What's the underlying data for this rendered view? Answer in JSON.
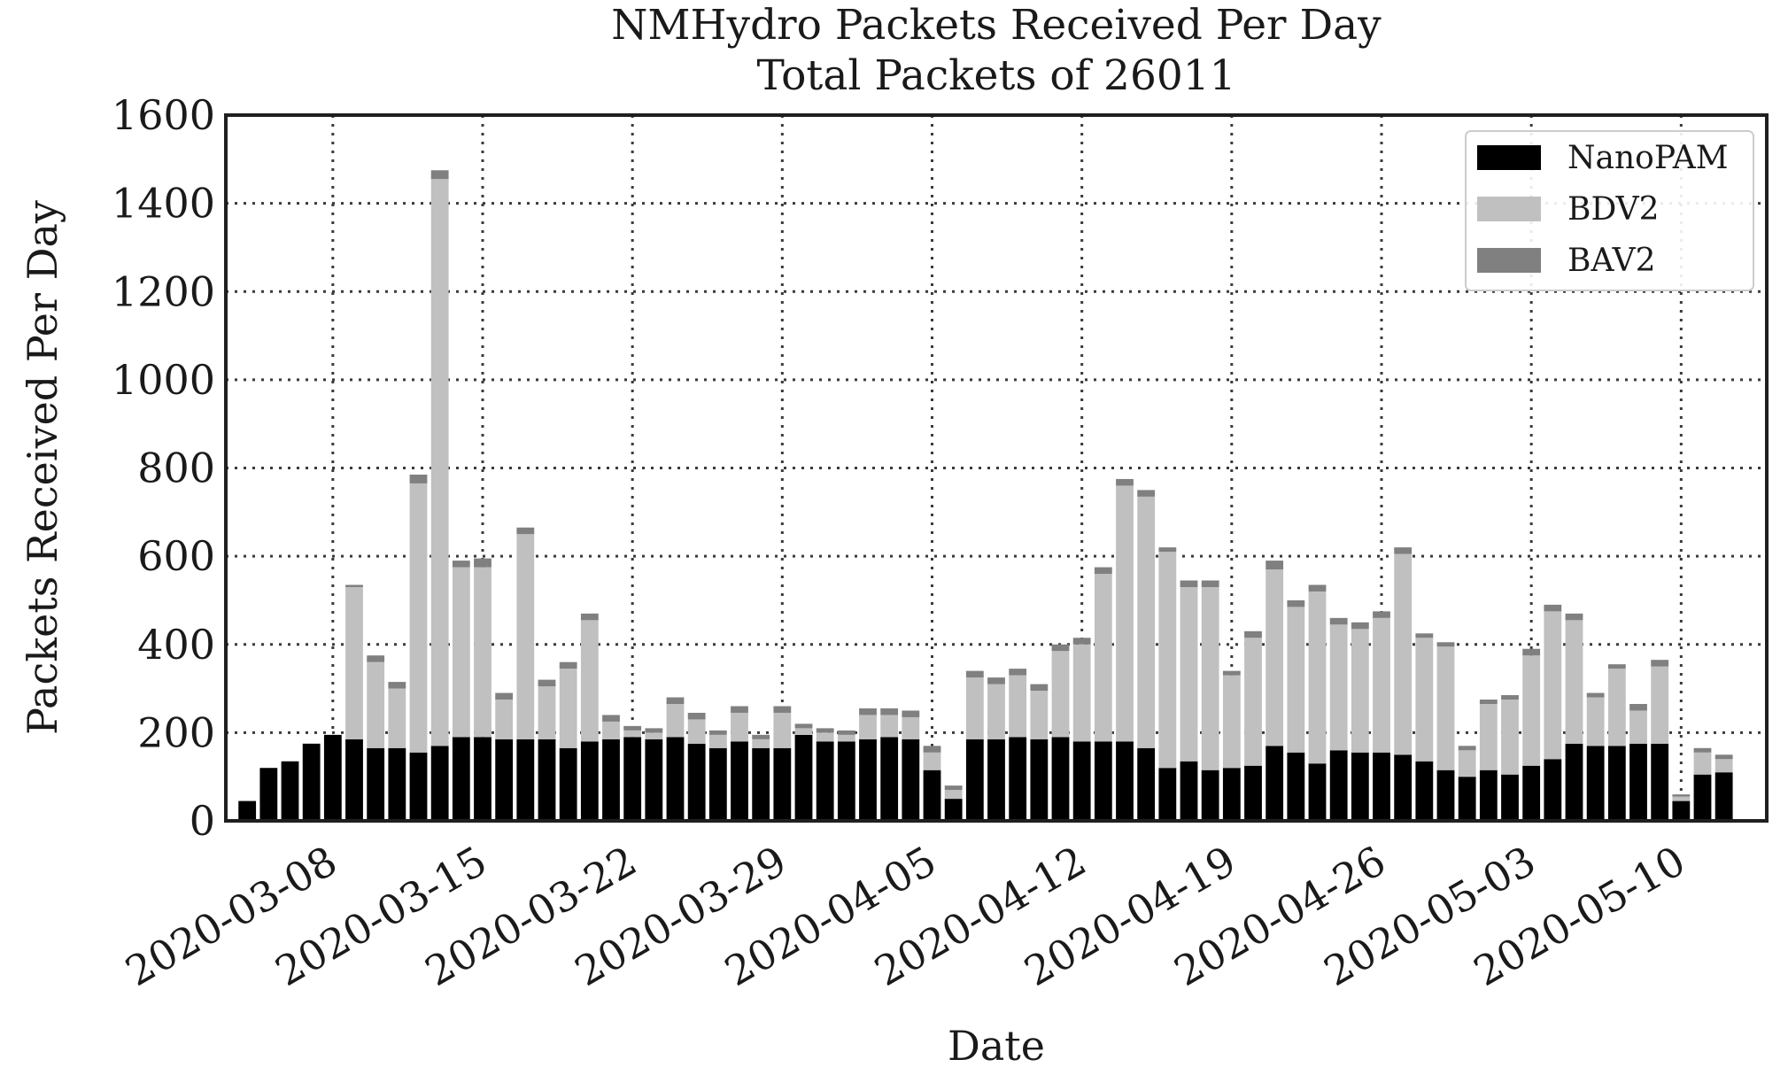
{
  "chart_data": {
    "type": "bar",
    "stacked": true,
    "title": "NMHydro Packets Received Per Day",
    "subtitle": "Total Packets of 26011",
    "xlabel": "Date",
    "ylabel": "Packets Received Per Day",
    "ylim": [
      0,
      1600
    ],
    "yticks": [
      "0",
      "200",
      "400",
      "600",
      "800",
      "1000",
      "1200",
      "1400",
      "1600"
    ],
    "x_start": "2020-03-04",
    "xlim": [
      "2020-03-03",
      "2020-05-14"
    ],
    "xticks": [
      "2020-03-08",
      "2020-03-15",
      "2020-03-22",
      "2020-03-29",
      "2020-04-05",
      "2020-04-12",
      "2020-04-19",
      "2020-04-26",
      "2020-05-03",
      "2020-05-10"
    ],
    "grid": true,
    "legend_position": "top-right",
    "series": [
      {
        "name": "NanoPAM",
        "color": "#000000",
        "values": [
          45,
          120,
          135,
          175,
          195,
          185,
          165,
          165,
          155,
          170,
          190,
          190,
          185,
          185,
          185,
          165,
          180,
          185,
          190,
          185,
          190,
          175,
          165,
          180,
          165,
          165,
          195,
          180,
          180,
          185,
          190,
          185,
          115,
          50,
          185,
          185,
          190,
          185,
          190,
          180,
          180,
          180,
          165,
          120,
          135,
          115,
          120,
          125,
          170,
          155,
          130,
          160,
          155,
          155,
          150,
          135,
          115,
          100,
          115,
          105,
          125,
          140,
          175,
          170,
          170,
          175,
          175,
          45,
          105,
          110
        ]
      },
      {
        "name": "BDV2",
        "color": "#c0c0c0",
        "values": [
          0,
          0,
          0,
          0,
          0,
          345,
          195,
          135,
          610,
          1285,
          385,
          385,
          90,
          465,
          120,
          180,
          275,
          40,
          15,
          15,
          75,
          55,
          30,
          65,
          20,
          80,
          15,
          20,
          15,
          55,
          50,
          50,
          40,
          20,
          140,
          125,
          140,
          110,
          195,
          220,
          380,
          580,
          570,
          490,
          395,
          415,
          210,
          290,
          400,
          330,
          390,
          285,
          280,
          305,
          455,
          280,
          280,
          60,
          150,
          170,
          250,
          335,
          280,
          110,
          175,
          75,
          175,
          10,
          50,
          30
        ]
      },
      {
        "name": "BAV2",
        "color": "#808080",
        "values": [
          0,
          0,
          0,
          0,
          0,
          5,
          15,
          15,
          20,
          20,
          15,
          20,
          15,
          15,
          15,
          15,
          15,
          15,
          10,
          10,
          15,
          15,
          10,
          15,
          10,
          15,
          10,
          10,
          10,
          15,
          15,
          15,
          15,
          10,
          15,
          15,
          15,
          15,
          15,
          15,
          15,
          15,
          15,
          10,
          15,
          15,
          10,
          15,
          20,
          15,
          15,
          15,
          15,
          15,
          15,
          10,
          10,
          10,
          10,
          10,
          15,
          15,
          15,
          10,
          10,
          15,
          15,
          5,
          10,
          10
        ]
      }
    ]
  }
}
